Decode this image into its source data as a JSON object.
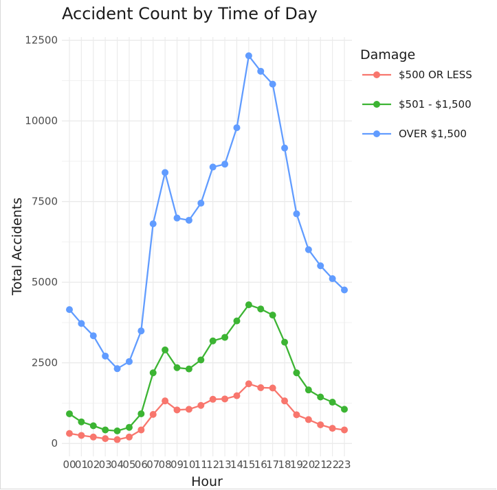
{
  "chart_data": {
    "type": "line",
    "title": "Accident Count by Time of Day",
    "xlabel": "Hour",
    "ylabel": "Total Accidents",
    "categories": [
      "00",
      "01",
      "02",
      "03",
      "04",
      "05",
      "06",
      "07",
      "08",
      "09",
      "10",
      "11",
      "12",
      "13",
      "14",
      "15",
      "16",
      "17",
      "18",
      "19",
      "20",
      "21",
      "22",
      "23"
    ],
    "ylim": [
      -400,
      12600
    ],
    "yticks": [
      0,
      2500,
      5000,
      7500,
      10000,
      12500
    ],
    "grid": true,
    "legend": {
      "title": "Damage",
      "placement": "right"
    },
    "series": [
      {
        "name": "$500 OR LESS",
        "color": "#f8766d",
        "values": [
          310,
          250,
          200,
          150,
          120,
          200,
          420,
          900,
          1320,
          1040,
          1060,
          1180,
          1370,
          1380,
          1480,
          1850,
          1730,
          1720,
          1320,
          890,
          740,
          580,
          470,
          420
        ]
      },
      {
        "name": "$501 - $1,500",
        "color": "#3cb433",
        "values": [
          920,
          670,
          550,
          420,
          390,
          500,
          920,
          2190,
          2900,
          2350,
          2310,
          2590,
          3180,
          3290,
          3800,
          4300,
          4170,
          3980,
          3140,
          2190,
          1660,
          1440,
          1280,
          1060
        ]
      },
      {
        "name": "OVER $1,500",
        "color": "#619cff",
        "values": [
          4150,
          3720,
          3340,
          2710,
          2320,
          2540,
          3490,
          6810,
          8400,
          6990,
          6920,
          7450,
          8570,
          8660,
          9790,
          12020,
          11540,
          11140,
          9160,
          7120,
          6010,
          5510,
          5110,
          4760
        ]
      }
    ]
  }
}
